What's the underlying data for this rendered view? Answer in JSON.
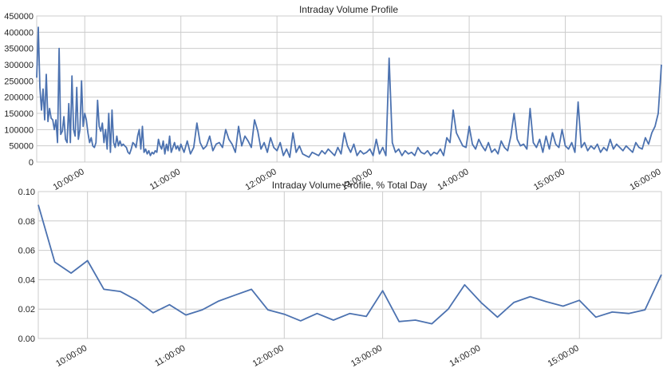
{
  "colors": {
    "line": "#4c72b0",
    "grid": "#cccccc",
    "frame": "#cccccc",
    "text": "#262626"
  },
  "chart_data": [
    {
      "type": "line",
      "title": "Intraday Volume Profile",
      "xlabel": "",
      "ylabel": "",
      "x_range": [
        "09:30",
        "16:00"
      ],
      "ylim": [
        0,
        450000
      ],
      "yticks": [
        "0",
        "50000",
        "100000",
        "150000",
        "200000",
        "250000",
        "300000",
        "350000",
        "400000",
        "450000"
      ],
      "xticks": [
        "10:00:00",
        "11:00:00",
        "12:00:00",
        "13:00:00",
        "14:00:00",
        "15:00:00",
        "16:00:00"
      ],
      "grid": true,
      "series": [
        {
          "x": [
            "09:30",
            "09:31",
            "09:32",
            "09:33",
            "09:34",
            "09:35",
            "09:36",
            "09:37",
            "09:38",
            "09:39",
            "09:40",
            "09:41",
            "09:42",
            "09:43",
            "09:44",
            "09:45",
            "09:46",
            "09:47",
            "09:48",
            "09:49",
            "09:50",
            "09:51",
            "09:52",
            "09:53",
            "09:54",
            "09:55",
            "09:56",
            "09:57",
            "09:58",
            "09:59",
            "10:00",
            "10:01",
            "10:02",
            "10:03",
            "10:04",
            "10:05",
            "10:06",
            "10:07",
            "10:08",
            "10:09",
            "10:10",
            "10:11",
            "10:12",
            "10:13",
            "10:14",
            "10:15",
            "10:16",
            "10:17",
            "10:18",
            "10:19",
            "10:20",
            "10:21",
            "10:22",
            "10:23",
            "10:24",
            "10:25",
            "10:26",
            "10:27",
            "10:28",
            "10:29",
            "10:30",
            "10:31",
            "10:32",
            "10:33",
            "10:34",
            "10:35",
            "10:36",
            "10:37",
            "10:38",
            "10:39",
            "10:40",
            "10:41",
            "10:42",
            "10:43",
            "10:44",
            "10:45",
            "10:46",
            "10:47",
            "10:48",
            "10:49",
            "10:50",
            "10:51",
            "10:52",
            "10:53",
            "10:54",
            "10:55",
            "10:56",
            "10:57",
            "10:58",
            "10:59",
            "11:00",
            "11:02",
            "11:04",
            "11:06",
            "11:08",
            "11:10",
            "11:12",
            "11:14",
            "11:16",
            "11:18",
            "11:20",
            "11:22",
            "11:24",
            "11:26",
            "11:28",
            "11:30",
            "11:32",
            "11:34",
            "11:36",
            "11:38",
            "11:40",
            "11:42",
            "11:44",
            "11:46",
            "11:48",
            "11:50",
            "11:52",
            "11:54",
            "11:56",
            "11:58",
            "12:00",
            "12:02",
            "12:04",
            "12:06",
            "12:08",
            "12:10",
            "12:12",
            "12:14",
            "12:16",
            "12:18",
            "12:20",
            "12:22",
            "12:24",
            "12:26",
            "12:28",
            "12:30",
            "12:32",
            "12:34",
            "12:36",
            "12:38",
            "12:40",
            "12:42",
            "12:44",
            "12:46",
            "12:48",
            "12:50",
            "12:52",
            "12:54",
            "12:56",
            "12:58",
            "13:00",
            "13:02",
            "13:04",
            "13:06",
            "13:08",
            "13:10",
            "13:12",
            "13:14",
            "13:16",
            "13:18",
            "13:20",
            "13:22",
            "13:24",
            "13:26",
            "13:28",
            "13:30",
            "13:32",
            "13:34",
            "13:36",
            "13:38",
            "13:40",
            "13:42",
            "13:44",
            "13:46",
            "13:48",
            "13:50",
            "13:52",
            "13:54",
            "13:56",
            "13:58",
            "14:00",
            "14:02",
            "14:04",
            "14:06",
            "14:08",
            "14:10",
            "14:12",
            "14:14",
            "14:16",
            "14:18",
            "14:20",
            "14:22",
            "14:24",
            "14:26",
            "14:28",
            "14:30",
            "14:32",
            "14:34",
            "14:36",
            "14:38",
            "14:40",
            "14:42",
            "14:44",
            "14:46",
            "14:48",
            "14:50",
            "14:52",
            "14:54",
            "14:56",
            "14:58",
            "15:00",
            "15:02",
            "15:04",
            "15:06",
            "15:08",
            "15:10",
            "15:12",
            "15:14",
            "15:16",
            "15:18",
            "15:20",
            "15:22",
            "15:24",
            "15:26",
            "15:28",
            "15:30",
            "15:32",
            "15:34",
            "15:36",
            "15:38",
            "15:40",
            "15:42",
            "15:44",
            "15:46",
            "15:48",
            "15:50",
            "15:52",
            "15:54",
            "15:56",
            "15:58",
            "16:00"
          ],
          "values": [
            260000,
            415000,
            230000,
            160000,
            225000,
            130000,
            270000,
            125000,
            165000,
            135000,
            130000,
            100000,
            130000,
            60000,
            350000,
            85000,
            95000,
            140000,
            70000,
            60000,
            180000,
            60000,
            265000,
            100000,
            80000,
            230000,
            70000,
            100000,
            250000,
            110000,
            150000,
            130000,
            90000,
            60000,
            75000,
            50000,
            45000,
            60000,
            190000,
            110000,
            95000,
            120000,
            60000,
            100000,
            40000,
            150000,
            30000,
            160000,
            60000,
            45000,
            80000,
            50000,
            65000,
            50000,
            55000,
            50000,
            45000,
            30000,
            25000,
            40000,
            60000,
            55000,
            45000,
            80000,
            100000,
            40000,
            110000,
            30000,
            40000,
            25000,
            35000,
            20000,
            30000,
            25000,
            35000,
            30000,
            70000,
            50000,
            40000,
            65000,
            25000,
            55000,
            35000,
            80000,
            30000,
            45000,
            60000,
            40000,
            50000,
            35000,
            55000,
            30000,
            65000,
            25000,
            45000,
            120000,
            60000,
            40000,
            50000,
            80000,
            35000,
            55000,
            60000,
            45000,
            100000,
            70000,
            55000,
            30000,
            110000,
            50000,
            80000,
            65000,
            45000,
            130000,
            95000,
            40000,
            60000,
            30000,
            75000,
            45000,
            35000,
            60000,
            20000,
            40000,
            15000,
            90000,
            30000,
            50000,
            25000,
            20000,
            15000,
            30000,
            25000,
            20000,
            35000,
            25000,
            40000,
            30000,
            20000,
            45000,
            25000,
            90000,
            50000,
            30000,
            55000,
            20000,
            35000,
            25000,
            30000,
            40000,
            20000,
            70000,
            25000,
            45000,
            20000,
            320000,
            60000,
            30000,
            40000,
            20000,
            35000,
            25000,
            30000,
            20000,
            45000,
            30000,
            25000,
            35000,
            20000,
            30000,
            25000,
            40000,
            20000,
            75000,
            60000,
            160000,
            90000,
            70000,
            50000,
            45000,
            110000,
            55000,
            40000,
            70000,
            50000,
            35000,
            60000,
            30000,
            40000,
            25000,
            65000,
            45000,
            35000,
            80000,
            150000,
            70000,
            50000,
            55000,
            40000,
            165000,
            60000,
            45000,
            70000,
            30000,
            80000,
            40000,
            90000,
            55000,
            45000,
            100000,
            50000,
            40000,
            60000,
            30000,
            185000,
            45000,
            60000,
            35000,
            50000,
            40000,
            55000,
            30000,
            45000,
            35000,
            70000,
            40000,
            55000,
            45000,
            35000,
            50000,
            40000,
            30000,
            60000,
            45000,
            40000,
            75000,
            55000,
            90000,
            110000,
            150000,
            300000
          ]
        }
      ]
    },
    {
      "type": "line",
      "title": "Intraday Volume Profile, % Total Day",
      "xlabel": "",
      "ylabel": "",
      "x_range": [
        "09:30",
        "15:50"
      ],
      "ylim": [
        0,
        0.1
      ],
      "yticks": [
        "0.00",
        "0.02",
        "0.04",
        "0.06",
        "0.08",
        "0.10"
      ],
      "xticks": [
        "10:00:00",
        "11:00:00",
        "12:00:00",
        "13:00:00",
        "14:00:00",
        "15:00:00"
      ],
      "grid": true,
      "series": [
        {
          "x": [
            "09:30",
            "09:40",
            "09:50",
            "10:00",
            "10:10",
            "10:20",
            "10:30",
            "10:40",
            "10:50",
            "11:00",
            "11:10",
            "11:20",
            "11:30",
            "11:40",
            "11:50",
            "12:00",
            "12:10",
            "12:20",
            "12:30",
            "12:40",
            "12:50",
            "13:00",
            "13:10",
            "13:20",
            "13:30",
            "13:40",
            "13:50",
            "14:00",
            "14:10",
            "14:20",
            "14:30",
            "14:40",
            "14:50",
            "15:00",
            "15:10",
            "15:20",
            "15:30",
            "15:40",
            "15:50"
          ],
          "values": [
            0.091,
            0.052,
            0.0445,
            0.053,
            0.0335,
            0.032,
            0.026,
            0.0175,
            0.023,
            0.016,
            0.0195,
            0.0255,
            0.0295,
            0.0335,
            0.0195,
            0.0165,
            0.012,
            0.017,
            0.0125,
            0.017,
            0.015,
            0.0325,
            0.0115,
            0.0125,
            0.01,
            0.02,
            0.0365,
            0.0245,
            0.0145,
            0.0245,
            0.0285,
            0.025,
            0.022,
            0.026,
            0.0145,
            0.018,
            0.017,
            0.0195,
            0.0435
          ]
        }
      ]
    }
  ]
}
